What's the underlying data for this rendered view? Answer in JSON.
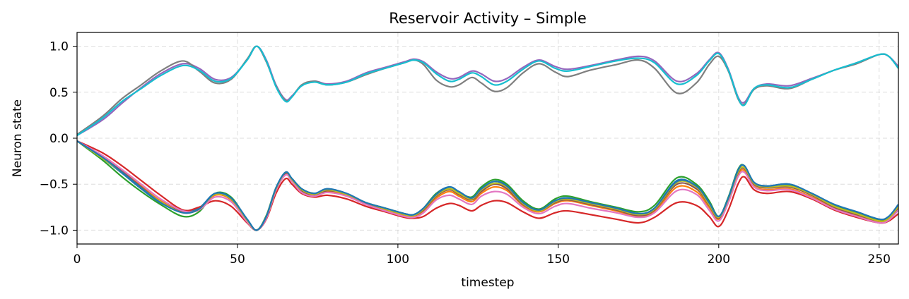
{
  "chart_data": {
    "type": "line",
    "title": "Reservoir Activity – Simple",
    "xlabel": "timestep",
    "ylabel": "Neuron state",
    "xlim": [
      0,
      256
    ],
    "ylim": [
      -1.15,
      1.15
    ],
    "grid": true,
    "xticks": [
      0,
      50,
      100,
      150,
      200,
      250
    ],
    "xtick_labels": [
      "0",
      "50",
      "100",
      "150",
      "200",
      "250"
    ],
    "yticks": [
      -1.0,
      -0.5,
      0.0,
      0.5,
      1.0
    ],
    "ytick_labels": [
      "−1.0",
      "−0.5",
      "0.0",
      "0.5",
      "1.0"
    ],
    "x": [
      0,
      8,
      14,
      20,
      26,
      33,
      38,
      43,
      48,
      53,
      56,
      59,
      62,
      65,
      67,
      70,
      74,
      78,
      84,
      90,
      96,
      102,
      105,
      108,
      112,
      116,
      119,
      123,
      126,
      130,
      134,
      139,
      144,
      149,
      153,
      160,
      168,
      175,
      180,
      187,
      193,
      197,
      200,
      203,
      206,
      208,
      211,
      215,
      222,
      229,
      236,
      243,
      250,
      253,
      256
    ],
    "series": [
      {
        "color": "#1f77b4",
        "values": [
          -0.03,
          -0.22,
          -0.38,
          -0.55,
          -0.7,
          -0.8,
          -0.76,
          -0.6,
          -0.65,
          -0.88,
          -1.0,
          -0.85,
          -0.55,
          -0.38,
          -0.44,
          -0.55,
          -0.6,
          -0.55,
          -0.6,
          -0.7,
          -0.76,
          -0.82,
          -0.83,
          -0.76,
          -0.6,
          -0.53,
          -0.58,
          -0.65,
          -0.55,
          -0.47,
          -0.52,
          -0.7,
          -0.78,
          -0.68,
          -0.65,
          -0.7,
          -0.76,
          -0.82,
          -0.76,
          -0.46,
          -0.52,
          -0.7,
          -0.85,
          -0.65,
          -0.35,
          -0.3,
          -0.48,
          -0.52,
          -0.5,
          -0.6,
          -0.72,
          -0.8,
          -0.88,
          -0.85,
          -0.72
        ]
      },
      {
        "color": "#ff7f0e",
        "values": [
          -0.03,
          -0.2,
          -0.35,
          -0.52,
          -0.68,
          -0.79,
          -0.78,
          -0.62,
          -0.67,
          -0.9,
          -1.0,
          -0.86,
          -0.56,
          -0.39,
          -0.46,
          -0.58,
          -0.63,
          -0.58,
          -0.62,
          -0.71,
          -0.78,
          -0.84,
          -0.85,
          -0.79,
          -0.65,
          -0.58,
          -0.63,
          -0.69,
          -0.6,
          -0.53,
          -0.57,
          -0.73,
          -0.8,
          -0.71,
          -0.68,
          -0.73,
          -0.79,
          -0.85,
          -0.8,
          -0.53,
          -0.58,
          -0.75,
          -0.88,
          -0.68,
          -0.4,
          -0.35,
          -0.52,
          -0.56,
          -0.55,
          -0.64,
          -0.76,
          -0.84,
          -0.91,
          -0.88,
          -0.76
        ]
      },
      {
        "color": "#2ca02c",
        "values": [
          -0.03,
          -0.24,
          -0.42,
          -0.58,
          -0.72,
          -0.85,
          -0.8,
          -0.6,
          -0.64,
          -0.89,
          -1.0,
          -0.84,
          -0.54,
          -0.38,
          -0.44,
          -0.55,
          -0.6,
          -0.56,
          -0.61,
          -0.7,
          -0.76,
          -0.82,
          -0.83,
          -0.76,
          -0.6,
          -0.55,
          -0.59,
          -0.64,
          -0.53,
          -0.45,
          -0.5,
          -0.68,
          -0.77,
          -0.66,
          -0.63,
          -0.69,
          -0.75,
          -0.8,
          -0.73,
          -0.43,
          -0.5,
          -0.68,
          -0.85,
          -0.64,
          -0.34,
          -0.3,
          -0.48,
          -0.52,
          -0.51,
          -0.6,
          -0.73,
          -0.81,
          -0.89,
          -0.86,
          -0.73
        ]
      },
      {
        "color": "#d62728",
        "values": [
          -0.03,
          -0.16,
          -0.3,
          -0.46,
          -0.62,
          -0.78,
          -0.75,
          -0.68,
          -0.74,
          -0.92,
          -1.0,
          -0.88,
          -0.6,
          -0.44,
          -0.5,
          -0.6,
          -0.64,
          -0.62,
          -0.66,
          -0.74,
          -0.8,
          -0.86,
          -0.87,
          -0.85,
          -0.76,
          -0.71,
          -0.73,
          -0.79,
          -0.73,
          -0.68,
          -0.7,
          -0.8,
          -0.87,
          -0.81,
          -0.79,
          -0.83,
          -0.88,
          -0.92,
          -0.86,
          -0.7,
          -0.73,
          -0.85,
          -0.96,
          -0.78,
          -0.5,
          -0.42,
          -0.56,
          -0.6,
          -0.58,
          -0.66,
          -0.78,
          -0.86,
          -0.92,
          -0.9,
          -0.82
        ]
      },
      {
        "color": "#9467bd",
        "values": [
          0.03,
          0.2,
          0.38,
          0.55,
          0.7,
          0.81,
          0.76,
          0.64,
          0.66,
          0.85,
          1.0,
          0.85,
          0.58,
          0.42,
          0.46,
          0.57,
          0.62,
          0.59,
          0.62,
          0.71,
          0.77,
          0.83,
          0.86,
          0.83,
          0.72,
          0.65,
          0.66,
          0.73,
          0.7,
          0.62,
          0.65,
          0.77,
          0.85,
          0.78,
          0.75,
          0.79,
          0.85,
          0.89,
          0.84,
          0.62,
          0.7,
          0.85,
          0.93,
          0.75,
          0.45,
          0.39,
          0.54,
          0.59,
          0.57,
          0.65,
          0.74,
          0.82,
          0.91,
          0.89,
          0.78
        ]
      },
      {
        "color": "#8c564b",
        "values": [
          -0.03,
          -0.21,
          -0.36,
          -0.53,
          -0.69,
          -0.8,
          -0.77,
          -0.61,
          -0.66,
          -0.89,
          -1.0,
          -0.85,
          -0.55,
          -0.38,
          -0.45,
          -0.57,
          -0.62,
          -0.57,
          -0.61,
          -0.71,
          -0.77,
          -0.83,
          -0.84,
          -0.78,
          -0.63,
          -0.56,
          -0.61,
          -0.67,
          -0.58,
          -0.5,
          -0.55,
          -0.72,
          -0.79,
          -0.7,
          -0.67,
          -0.72,
          -0.78,
          -0.84,
          -0.78,
          -0.5,
          -0.55,
          -0.73,
          -0.87,
          -0.67,
          -0.38,
          -0.33,
          -0.5,
          -0.54,
          -0.53,
          -0.62,
          -0.75,
          -0.83,
          -0.9,
          -0.87,
          -0.75
        ]
      },
      {
        "color": "#e377c2",
        "values": [
          -0.03,
          -0.19,
          -0.34,
          -0.5,
          -0.66,
          -0.79,
          -0.78,
          -0.64,
          -0.69,
          -0.91,
          -1.0,
          -0.87,
          -0.57,
          -0.4,
          -0.47,
          -0.59,
          -0.63,
          -0.59,
          -0.63,
          -0.72,
          -0.79,
          -0.85,
          -0.86,
          -0.81,
          -0.67,
          -0.62,
          -0.66,
          -0.72,
          -0.63,
          -0.58,
          -0.61,
          -0.75,
          -0.82,
          -0.74,
          -0.71,
          -0.76,
          -0.81,
          -0.86,
          -0.81,
          -0.57,
          -0.61,
          -0.78,
          -0.9,
          -0.7,
          -0.42,
          -0.37,
          -0.53,
          -0.57,
          -0.56,
          -0.65,
          -0.77,
          -0.85,
          -0.92,
          -0.89,
          -0.78
        ]
      },
      {
        "color": "#7f7f7f",
        "values": [
          0.04,
          0.24,
          0.43,
          0.58,
          0.73,
          0.84,
          0.73,
          0.6,
          0.64,
          0.86,
          1.0,
          0.83,
          0.57,
          0.41,
          0.45,
          0.58,
          0.62,
          0.58,
          0.61,
          0.69,
          0.76,
          0.82,
          0.85,
          0.8,
          0.63,
          0.56,
          0.58,
          0.66,
          0.6,
          0.51,
          0.55,
          0.71,
          0.81,
          0.72,
          0.67,
          0.74,
          0.8,
          0.85,
          0.76,
          0.49,
          0.6,
          0.8,
          0.89,
          0.73,
          0.43,
          0.37,
          0.53,
          0.57,
          0.54,
          0.64,
          0.74,
          0.81,
          0.91,
          0.89,
          0.76
        ]
      },
      {
        "color": "#bcbd22",
        "values": [
          -0.03,
          -0.22,
          -0.37,
          -0.54,
          -0.69,
          -0.81,
          -0.77,
          -0.61,
          -0.66,
          -0.89,
          -1.0,
          -0.85,
          -0.55,
          -0.37,
          -0.45,
          -0.56,
          -0.61,
          -0.56,
          -0.61,
          -0.7,
          -0.77,
          -0.83,
          -0.84,
          -0.77,
          -0.62,
          -0.55,
          -0.6,
          -0.66,
          -0.56,
          -0.49,
          -0.53,
          -0.71,
          -0.79,
          -0.69,
          -0.66,
          -0.71,
          -0.77,
          -0.83,
          -0.77,
          -0.48,
          -0.53,
          -0.72,
          -0.86,
          -0.66,
          -0.37,
          -0.32,
          -0.49,
          -0.53,
          -0.52,
          -0.61,
          -0.74,
          -0.82,
          -0.9,
          -0.87,
          -0.74
        ]
      },
      {
        "color": "#17becf",
        "values": [
          0.03,
          0.22,
          0.4,
          0.54,
          0.68,
          0.79,
          0.74,
          0.62,
          0.65,
          0.85,
          1.0,
          0.84,
          0.56,
          0.4,
          0.45,
          0.57,
          0.61,
          0.58,
          0.61,
          0.7,
          0.76,
          0.82,
          0.85,
          0.82,
          0.7,
          0.62,
          0.64,
          0.71,
          0.67,
          0.58,
          0.62,
          0.75,
          0.84,
          0.76,
          0.73,
          0.78,
          0.84,
          0.87,
          0.82,
          0.59,
          0.68,
          0.84,
          0.92,
          0.74,
          0.44,
          0.36,
          0.54,
          0.58,
          0.55,
          0.64,
          0.74,
          0.82,
          0.91,
          0.89,
          0.76
        ]
      },
      {
        "color": "#1f77b4",
        "values": [
          -0.03,
          -0.21,
          -0.37,
          -0.54,
          -0.7,
          -0.81,
          -0.77,
          -0.6,
          -0.65,
          -0.88,
          -1.0,
          -0.85,
          -0.54,
          -0.37,
          -0.44,
          -0.55,
          -0.6,
          -0.55,
          -0.6,
          -0.7,
          -0.76,
          -0.82,
          -0.83,
          -0.76,
          -0.61,
          -0.53,
          -0.58,
          -0.65,
          -0.55,
          -0.47,
          -0.52,
          -0.7,
          -0.78,
          -0.68,
          -0.65,
          -0.7,
          -0.76,
          -0.82,
          -0.76,
          -0.47,
          -0.52,
          -0.7,
          -0.85,
          -0.65,
          -0.35,
          -0.3,
          -0.48,
          -0.52,
          -0.5,
          -0.6,
          -0.72,
          -0.8,
          -0.88,
          -0.85,
          -0.72
        ]
      }
    ]
  }
}
